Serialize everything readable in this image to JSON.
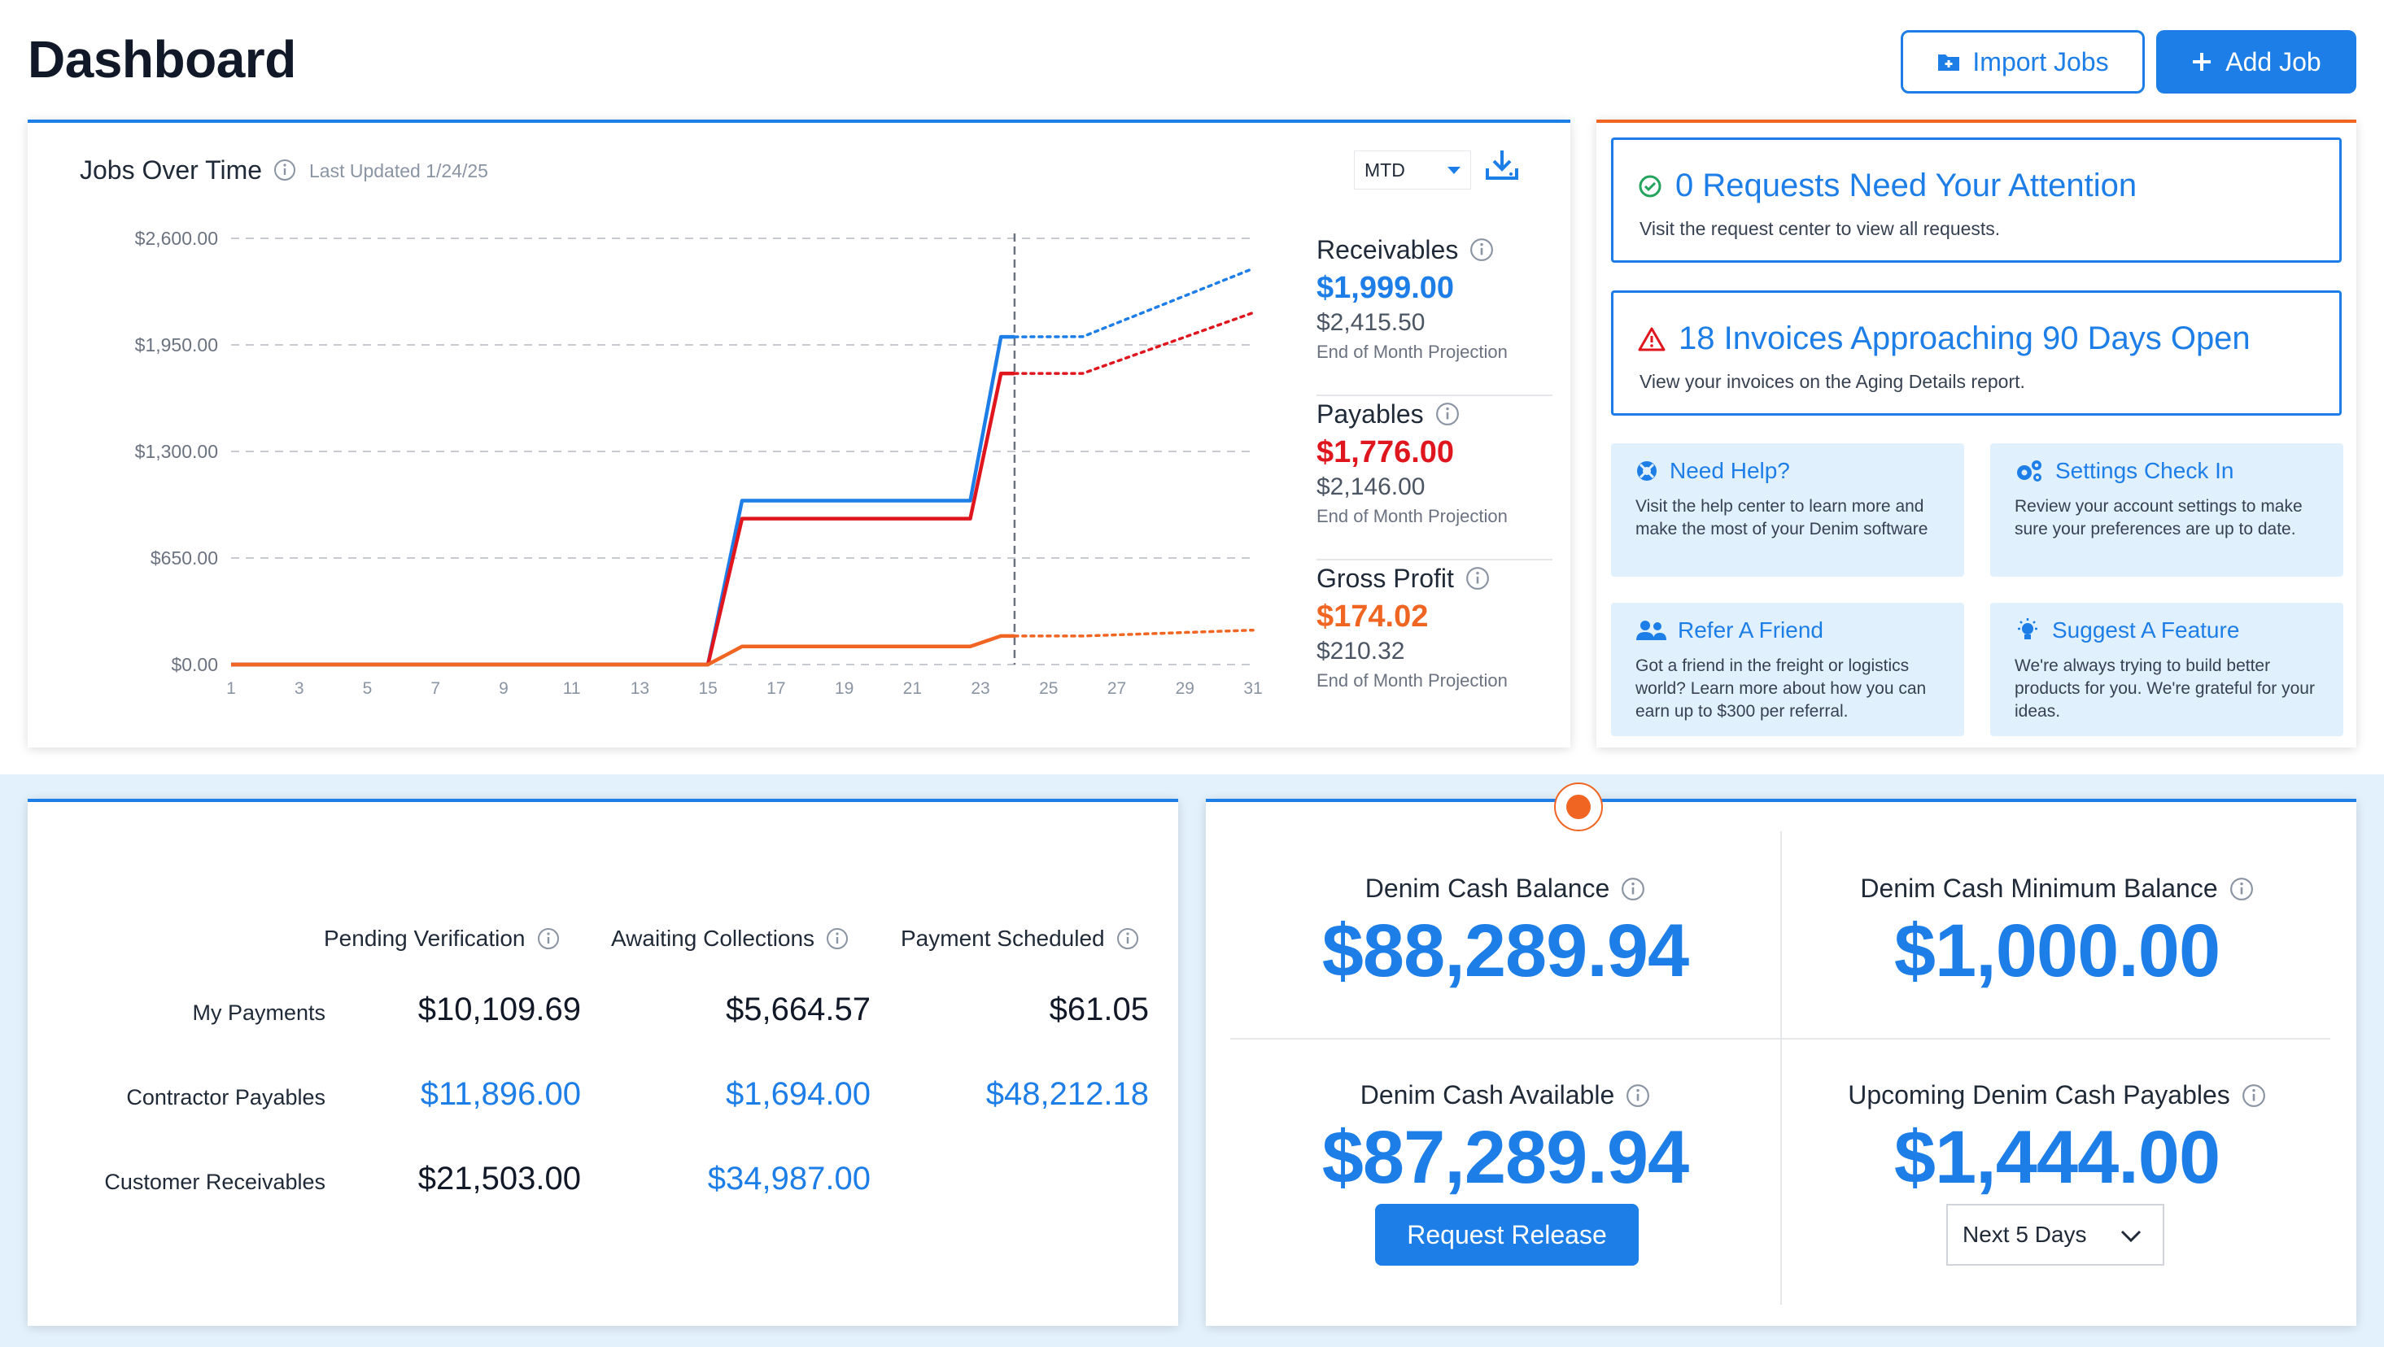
{
  "header": {
    "title": "Dashboard",
    "import_label": "Import Jobs",
    "add_label": "Add Job"
  },
  "chart_card": {
    "title": "Jobs Over Time",
    "updated": "Last Updated 1/24/25",
    "period": "MTD"
  },
  "chart_data": {
    "type": "line",
    "title": "Jobs Over Time",
    "x": [
      1,
      3,
      5,
      7,
      9,
      11,
      13,
      15,
      17,
      19,
      21,
      23,
      25,
      27,
      29,
      31
    ],
    "x_ticks": [
      "1",
      "3",
      "5",
      "7",
      "9",
      "11",
      "13",
      "15",
      "17",
      "19",
      "21",
      "23",
      "25",
      "27",
      "29",
      "31"
    ],
    "y_ticks": [
      "$2,600.00",
      "$1,950.00",
      "$1,300.00",
      "$650.00",
      "$0.00"
    ],
    "ylim": [
      0,
      2600
    ],
    "xlim": [
      1,
      31
    ],
    "today_marker": 24,
    "grid": true,
    "series": [
      {
        "name": "Receivables",
        "color": "#1e7ee8",
        "actual": [
          [
            1,
            0
          ],
          [
            15,
            0
          ],
          [
            16.0,
            1000
          ],
          [
            22.7,
            1000
          ],
          [
            23.6,
            1999
          ],
          [
            24,
            1999
          ]
        ],
        "projection": [
          [
            24,
            1999
          ],
          [
            26,
            2000
          ],
          [
            31,
            2415.5
          ]
        ]
      },
      {
        "name": "Payables",
        "color": "#e0161e",
        "actual": [
          [
            1,
            0
          ],
          [
            15,
            0
          ],
          [
            16.0,
            890
          ],
          [
            22.7,
            890
          ],
          [
            23.6,
            1776
          ],
          [
            24,
            1776
          ]
        ],
        "projection": [
          [
            24,
            1776
          ],
          [
            26,
            1776
          ],
          [
            31,
            2146
          ]
        ]
      },
      {
        "name": "Gross Profit",
        "color": "#f06522",
        "actual": [
          [
            1,
            0
          ],
          [
            15,
            0
          ],
          [
            16.0,
            110
          ],
          [
            22.7,
            110
          ],
          [
            23.6,
            174
          ],
          [
            24,
            174
          ]
        ],
        "projection": [
          [
            24,
            174
          ],
          [
            26,
            174
          ],
          [
            31,
            210
          ]
        ]
      }
    ]
  },
  "stats": {
    "receivables": {
      "label": "Receivables",
      "value": "$1,999.00",
      "projection": "$2,415.50",
      "sub": "End of Month Projection",
      "color": "#1e7ee8"
    },
    "payables": {
      "label": "Payables",
      "value": "$1,776.00",
      "projection": "$2,146.00",
      "sub": "End of Month Projection",
      "color": "#e0161e"
    },
    "profit": {
      "label": "Gross Profit",
      "value": "$174.02",
      "projection": "$210.32",
      "sub": "End of Month Projection",
      "color": "#f06522"
    }
  },
  "alerts": {
    "requests": {
      "title": "0 Requests Need Your Attention",
      "desc": "Visit the request center to view all requests."
    },
    "invoices": {
      "title": "18 Invoices Approaching 90 Days Open",
      "desc": "View your invoices on the Aging Details report."
    }
  },
  "tiles": {
    "help": {
      "title": "Need Help?",
      "desc": "Visit the help center to learn more and make the most of your Denim software"
    },
    "settings": {
      "title": "Settings Check In",
      "desc": "Review your account settings to make sure your preferences are up to date."
    },
    "refer": {
      "title": "Refer A Friend",
      "desc": "Got a friend in the freight or logistics world? Learn more about how you can earn up to $300 per referral."
    },
    "suggest": {
      "title": "Suggest A Feature",
      "desc": "We're always trying to build better products for you. We're grateful for your ideas."
    }
  },
  "payments": {
    "columns": [
      "Pending Verification",
      "Awaiting Collections",
      "Payment Scheduled"
    ],
    "rows": [
      {
        "label": "My Payments",
        "values": [
          "$10,109.69",
          "$5,664.57",
          "$61.05"
        ]
      },
      {
        "label": "Contractor Payables",
        "values": [
          "$11,896.00",
          "$1,694.00",
          "$48,212.18"
        ]
      },
      {
        "label": "Customer Receivables",
        "values": [
          "$21,503.00",
          "$34,987.00",
          ""
        ]
      }
    ]
  },
  "cash": {
    "balance": {
      "label": "Denim Cash Balance",
      "value": "$88,289.94"
    },
    "minimum": {
      "label": "Denim Cash Minimum Balance",
      "value": "$1,000.00"
    },
    "available": {
      "label": "Denim Cash Available",
      "value": "$87,289.94"
    },
    "upcoming": {
      "label": "Upcoming Denim Cash Payables",
      "value": "$1,444.00"
    },
    "release_label": "Request Release",
    "days_selected": "Next 5 Days"
  }
}
